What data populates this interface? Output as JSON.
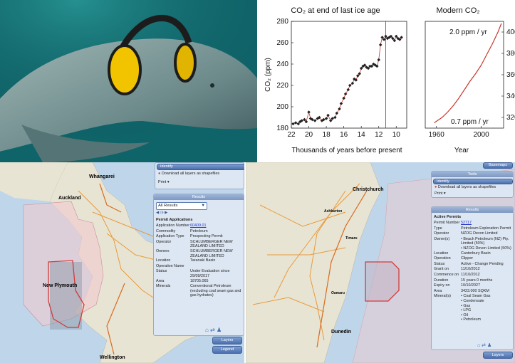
{
  "chart_data": [
    {
      "type": "scatter",
      "title": "CO₂ at end of last ice age",
      "xlabel": "Thousands of years before present",
      "ylabel": "CO₂ (ppm)",
      "xlim": [
        22,
        8.8
      ],
      "ylim": [
        180,
        280
      ],
      "xticks": [
        "22",
        "20",
        "18",
        "16",
        "14",
        "12",
        "10"
      ],
      "yticks": [
        "180",
        "200",
        "220",
        "240",
        "260",
        "280"
      ],
      "vline_x": 11.2,
      "x": [
        21.8,
        21.5,
        21.2,
        21.0,
        20.8,
        20.5,
        20.3,
        20.0,
        19.8,
        19.6,
        19.3,
        19.0,
        18.8,
        18.5,
        18.3,
        18.0,
        17.8,
        17.5,
        17.3,
        17.0,
        16.8,
        16.5,
        16.3,
        16.0,
        15.8,
        15.5,
        15.3,
        15.0,
        14.8,
        14.6,
        14.4,
        14.2,
        14.0,
        13.8,
        13.6,
        13.4,
        13.2,
        13.0,
        12.8,
        12.6,
        12.4,
        12.2,
        12.0,
        11.8,
        11.6,
        11.4,
        11.2,
        11.0,
        10.8,
        10.6,
        10.4,
        10.2,
        10.0,
        9.8,
        9.6,
        9.4
      ],
      "values": [
        184,
        185,
        184,
        186,
        187,
        188,
        186,
        195,
        189,
        188,
        187,
        189,
        190,
        187,
        188,
        189,
        192,
        187,
        189,
        190,
        194,
        198,
        203,
        208,
        212,
        216,
        220,
        222,
        226,
        225,
        229,
        231,
        236,
        238,
        239,
        237,
        236,
        238,
        238,
        240,
        239,
        238,
        244,
        258,
        265,
        263,
        266,
        264,
        265,
        266,
        264,
        262,
        266,
        264,
        263,
        265
      ]
    },
    {
      "type": "line",
      "title": "Modern CO₂",
      "xlabel": "Year",
      "xlim": [
        1950,
        2020
      ],
      "ylim": [
        310,
        410
      ],
      "xticks": [
        "1960",
        "2000"
      ],
      "yticks": [
        "320",
        "340",
        "360",
        "380",
        "400"
      ],
      "x": [
        1958,
        1965,
        1970,
        1975,
        1980,
        1985,
        1990,
        1995,
        2000,
        2005,
        2010,
        2015,
        2018
      ],
      "values": [
        315,
        320,
        325,
        331,
        338,
        346,
        354,
        361,
        369,
        379,
        389,
        400,
        408
      ],
      "annotations": [
        "2.0 ppm / yr",
        "0.7 ppm / yr"
      ]
    }
  ],
  "colors": {
    "chart_points": "#b53a2c",
    "chart_line": "#c8372b",
    "panel_bg": "#dde7f4",
    "accent": "#5b7fbf",
    "permit_outline": "#d23a3a"
  },
  "left_panel": {
    "identify": "Identify",
    "download": "Download all layers as shapefiles",
    "print": "Print",
    "results_header": "Results",
    "dropdown": "All Results",
    "section_title": "Permit Applications",
    "rows": [
      {
        "k": "Application Number",
        "v": "60409.01"
      },
      {
        "k": "Commodity",
        "v": "Petroleum"
      },
      {
        "k": "Application Type",
        "v": "Prospecting Permit"
      },
      {
        "k": "Operator",
        "v": "SCHLUMBERGER NEW ZEALAND LIMITED"
      },
      {
        "k": "Owners",
        "v": "SCHLUMBERGER NEW ZEALAND LIMITED"
      },
      {
        "k": "Location",
        "v": "Taranaki Basin"
      },
      {
        "k": "Operation Name",
        "v": ""
      },
      {
        "k": "Status",
        "v": "Under Evaluation since 29/09/2017"
      },
      {
        "k": "Area",
        "v": "18705.065"
      },
      {
        "k": "Minerals",
        "v": "Conventional Petroleum (excluding coal seam gas and gas hydrates)"
      }
    ],
    "layers_btn": "Layers",
    "legend_btn": "Legend",
    "map_labels": [
      "Whangarei",
      "Auckland",
      "New Plymouth",
      "Wellington"
    ]
  },
  "right_panel": {
    "basemaps_btn": "Basemaps",
    "tools_header": "Tools",
    "identify": "Identify",
    "download": "Download all layers as shapefiles",
    "print": "Print",
    "results_header": "Results",
    "section_title": "Active Permits",
    "rows": [
      {
        "k": "Permit Number",
        "v": "52717"
      },
      {
        "k": "Type",
        "v": "Petroleum Exploration Permit"
      },
      {
        "k": "Operator",
        "v": "NZOG Devon Limited"
      },
      {
        "k": "Owner(s)",
        "v": "• Beach Petroleum (NZ) Pty. Limited (50%)\n• NZOG Devon Limited (50%)"
      },
      {
        "k": "Location",
        "v": "Canterbury Basin"
      },
      {
        "k": "Operation",
        "v": "Clipper"
      },
      {
        "k": "Status",
        "v": "Active - Change Pending"
      },
      {
        "k": "Grant on",
        "v": "11/10/2012"
      },
      {
        "k": "Commence on",
        "v": "11/10/2012"
      },
      {
        "k": "Duration",
        "v": "15 years 0 months"
      },
      {
        "k": "Expiry on",
        "v": "10/10/2027"
      },
      {
        "k": "Area",
        "v": "3423.000 SQKM"
      },
      {
        "k": "Mineral(s)",
        "v": "• Coal Seam Gas\n• Condensate\n• Gas\n• LPG\n• Oil\n• Petroleum"
      }
    ],
    "layers_btn": "Layers",
    "map_labels": [
      "Christchurch",
      "Ashburton",
      "Timaru",
      "Oamaru",
      "Dunedin"
    ]
  }
}
